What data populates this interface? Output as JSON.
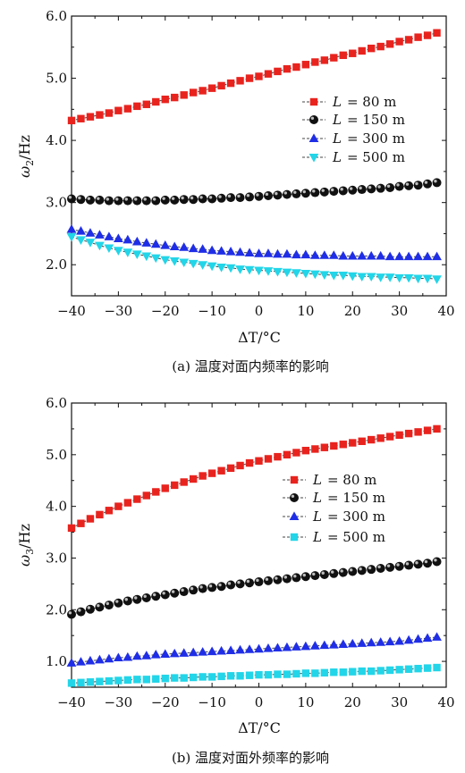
{
  "colors": {
    "red": "#e8231e",
    "black": "#111111",
    "blue": "#1f2ee6",
    "cyan": "#22d5e8",
    "line": "#333333"
  },
  "chart_data": [
    {
      "type": "line",
      "caption": "(a) 温度对面内频率的影响",
      "xlabel": "ΔT/°C",
      "ylabel": "ω2/Hz",
      "ylabel_main": "ω",
      "ylabel_sub": "2",
      "ylabel_unit": "/Hz",
      "xlim": [
        -40,
        40
      ],
      "ylim": [
        1.5,
        6.0
      ],
      "xticks": [
        "−40",
        "−30",
        "−20",
        "−10",
        "0",
        "10",
        "20",
        "30",
        "40"
      ],
      "yticks": [
        "2.0",
        "3.0",
        "4.0",
        "5.0",
        "6.0"
      ],
      "legend_position": "right-middle",
      "x": [
        -40,
        -38,
        -36,
        -34,
        -32,
        -30,
        -28,
        -26,
        -24,
        -22,
        -20,
        -18,
        -16,
        -14,
        -12,
        -10,
        -8,
        -6,
        -4,
        -2,
        0,
        2,
        4,
        6,
        8,
        10,
        12,
        14,
        16,
        18,
        20,
        22,
        24,
        26,
        28,
        30,
        32,
        34,
        36,
        38
      ],
      "series": [
        {
          "name": "L = 80 m",
          "legend_var": "L",
          "legend_val": "= 80 m",
          "marker": "square",
          "color": "#e8231e",
          "values": [
            4.32,
            4.35,
            4.38,
            4.41,
            4.44,
            4.48,
            4.51,
            4.55,
            4.58,
            4.62,
            4.66,
            4.69,
            4.73,
            4.77,
            4.8,
            4.84,
            4.88,
            4.92,
            4.96,
            5.0,
            5.03,
            5.07,
            5.11,
            5.15,
            5.18,
            5.22,
            5.26,
            5.29,
            5.33,
            5.37,
            5.4,
            5.44,
            5.48,
            5.51,
            5.55,
            5.59,
            5.62,
            5.66,
            5.69,
            5.73
          ]
        },
        {
          "name": "L = 150 m",
          "legend_var": "L",
          "legend_val": "= 150 m",
          "marker": "sphere",
          "color": "#111111",
          "values": [
            3.06,
            3.05,
            3.04,
            3.04,
            3.03,
            3.03,
            3.03,
            3.03,
            3.03,
            3.03,
            3.04,
            3.04,
            3.05,
            3.05,
            3.06,
            3.06,
            3.07,
            3.08,
            3.08,
            3.09,
            3.1,
            3.11,
            3.12,
            3.13,
            3.14,
            3.15,
            3.16,
            3.17,
            3.18,
            3.19,
            3.2,
            3.21,
            3.22,
            3.23,
            3.24,
            3.26,
            3.27,
            3.28,
            3.3,
            3.32
          ]
        },
        {
          "name": "L = 300 m",
          "legend_var": "L",
          "legend_val": "= 300 m",
          "marker": "triangle-up",
          "color": "#1f2ee6",
          "values": [
            2.57,
            2.54,
            2.51,
            2.48,
            2.45,
            2.42,
            2.4,
            2.37,
            2.35,
            2.33,
            2.31,
            2.29,
            2.28,
            2.26,
            2.25,
            2.23,
            2.22,
            2.21,
            2.2,
            2.19,
            2.18,
            2.18,
            2.17,
            2.17,
            2.16,
            2.16,
            2.15,
            2.15,
            2.15,
            2.14,
            2.14,
            2.14,
            2.14,
            2.14,
            2.13,
            2.13,
            2.13,
            2.13,
            2.13,
            2.13
          ]
        },
        {
          "name": "L = 500 m",
          "legend_var": "L",
          "legend_val": "= 500 m",
          "marker": "triangle-down",
          "color": "#22d5e8",
          "values": [
            2.45,
            2.4,
            2.36,
            2.31,
            2.27,
            2.23,
            2.2,
            2.17,
            2.14,
            2.11,
            2.08,
            2.06,
            2.04,
            2.02,
            2.0,
            1.98,
            1.96,
            1.95,
            1.93,
            1.92,
            1.91,
            1.9,
            1.89,
            1.88,
            1.87,
            1.86,
            1.85,
            1.84,
            1.83,
            1.83,
            1.82,
            1.81,
            1.81,
            1.8,
            1.8,
            1.79,
            1.79,
            1.78,
            1.78,
            1.77
          ]
        }
      ]
    },
    {
      "type": "line",
      "caption": "(b) 温度对面外频率的影响",
      "xlabel": "ΔT/°C",
      "ylabel": "ω3/Hz",
      "ylabel_main": "ω",
      "ylabel_sub": "3",
      "ylabel_unit": "/Hz",
      "xlim": [
        -40,
        40
      ],
      "ylim": [
        0.5,
        6.0
      ],
      "xticks": [
        "−40",
        "−30",
        "−20",
        "−10",
        "0",
        "10",
        "20",
        "30",
        "40"
      ],
      "yticks": [
        "1.0",
        "2.0",
        "3.0",
        "4.0",
        "5.0",
        "6.0"
      ],
      "legend_position": "right-middle",
      "x": [
        -40,
        -38,
        -36,
        -34,
        -32,
        -30,
        -28,
        -26,
        -24,
        -22,
        -20,
        -18,
        -16,
        -14,
        -12,
        -10,
        -8,
        -6,
        -4,
        -2,
        0,
        2,
        4,
        6,
        8,
        10,
        12,
        14,
        16,
        18,
        20,
        22,
        24,
        26,
        28,
        30,
        32,
        34,
        36,
        38
      ],
      "series": [
        {
          "name": "L = 80 m",
          "legend_var": "L",
          "legend_val": "= 80 m",
          "marker": "square",
          "color": "#e8231e",
          "values": [
            3.58,
            3.67,
            3.76,
            3.84,
            3.92,
            4.0,
            4.07,
            4.14,
            4.21,
            4.28,
            4.35,
            4.41,
            4.47,
            4.53,
            4.59,
            4.64,
            4.69,
            4.74,
            4.79,
            4.84,
            4.88,
            4.92,
            4.96,
            5.0,
            5.04,
            5.08,
            5.11,
            5.14,
            5.17,
            5.2,
            5.23,
            5.26,
            5.29,
            5.32,
            5.35,
            5.38,
            5.41,
            5.44,
            5.47,
            5.5
          ]
        },
        {
          "name": "L = 150 m",
          "legend_var": "L",
          "legend_val": "= 150 m",
          "marker": "sphere",
          "color": "#111111",
          "values": [
            1.91,
            1.96,
            2.01,
            2.05,
            2.09,
            2.13,
            2.17,
            2.2,
            2.23,
            2.26,
            2.29,
            2.32,
            2.35,
            2.38,
            2.41,
            2.43,
            2.45,
            2.48,
            2.5,
            2.52,
            2.54,
            2.56,
            2.58,
            2.6,
            2.62,
            2.64,
            2.66,
            2.68,
            2.7,
            2.72,
            2.74,
            2.76,
            2.78,
            2.8,
            2.82,
            2.84,
            2.86,
            2.88,
            2.9,
            2.93
          ]
        },
        {
          "name": "L = 300 m",
          "legend_var": "L",
          "legend_val": "= 300 m",
          "marker": "triangle-up",
          "color": "#1f2ee6",
          "values": [
            0.97,
            0.99,
            1.01,
            1.03,
            1.05,
            1.07,
            1.08,
            1.1,
            1.11,
            1.13,
            1.14,
            1.15,
            1.16,
            1.17,
            1.18,
            1.19,
            1.2,
            1.21,
            1.22,
            1.23,
            1.24,
            1.25,
            1.26,
            1.27,
            1.28,
            1.29,
            1.3,
            1.31,
            1.32,
            1.33,
            1.34,
            1.35,
            1.36,
            1.37,
            1.38,
            1.39,
            1.41,
            1.43,
            1.45,
            1.47
          ]
        },
        {
          "name": "L = 500 m",
          "legend_var": "L",
          "legend_val": "= 500 m",
          "marker": "square",
          "color": "#22d5e8",
          "values": [
            0.58,
            0.59,
            0.6,
            0.61,
            0.62,
            0.63,
            0.64,
            0.65,
            0.65,
            0.66,
            0.67,
            0.68,
            0.68,
            0.69,
            0.7,
            0.7,
            0.71,
            0.72,
            0.72,
            0.73,
            0.74,
            0.74,
            0.75,
            0.75,
            0.76,
            0.77,
            0.77,
            0.78,
            0.79,
            0.79,
            0.8,
            0.81,
            0.81,
            0.82,
            0.83,
            0.84,
            0.85,
            0.86,
            0.87,
            0.88
          ]
        }
      ]
    }
  ]
}
